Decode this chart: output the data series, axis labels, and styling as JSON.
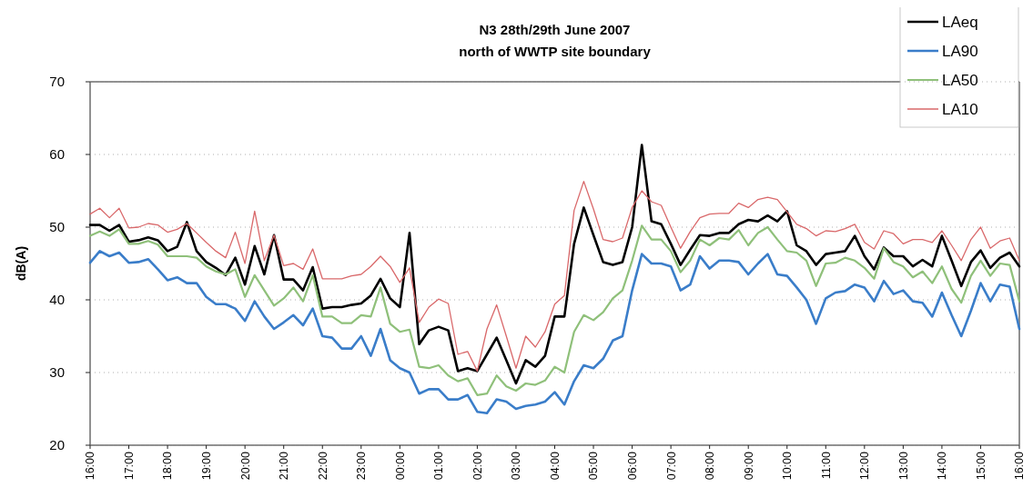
{
  "chart_data": {
    "type": "line",
    "title": "N3 28th/29th June 2007",
    "subtitle": "north of WWTP site boundary",
    "ylabel": "dB(A)",
    "x": [
      "2007-06-28T16:00",
      "2007-06-28T16:15",
      "2007-06-28T16:30",
      "2007-06-28T16:45",
      "2007-06-28T17:00",
      "2007-06-28T17:15",
      "2007-06-28T17:30",
      "2007-06-28T17:45",
      "2007-06-28T18:00",
      "2007-06-28T18:15",
      "2007-06-28T18:30",
      "2007-06-28T18:45",
      "2007-06-28T19:00",
      "2007-06-28T19:15",
      "2007-06-28T19:30",
      "2007-06-28T19:45",
      "2007-06-28T20:00",
      "2007-06-28T20:15",
      "2007-06-28T20:30",
      "2007-06-28T20:45",
      "2007-06-28T21:00",
      "2007-06-28T21:15",
      "2007-06-28T21:30",
      "2007-06-28T21:45",
      "2007-06-28T22:00",
      "2007-06-28T22:15",
      "2007-06-28T22:30",
      "2007-06-28T22:45",
      "2007-06-28T23:00",
      "2007-06-28T23:15",
      "2007-06-28T23:30",
      "2007-06-28T23:45",
      "2007-06-29T00:00",
      "2007-06-29T00:15",
      "2007-06-29T00:30",
      "2007-06-29T00:45",
      "2007-06-29T01:00",
      "2007-06-29T01:15",
      "2007-06-29T01:30",
      "2007-06-29T01:45",
      "2007-06-29T02:00",
      "2007-06-29T02:15",
      "2007-06-29T02:30",
      "2007-06-29T02:45",
      "2007-06-29T03:00",
      "2007-06-29T03:15",
      "2007-06-29T03:30",
      "2007-06-29T03:45",
      "2007-06-29T04:00",
      "2007-06-29T04:15",
      "2007-06-29T04:30",
      "2007-06-29T04:45",
      "2007-06-29T05:00",
      "2007-06-29T05:15",
      "2007-06-29T05:30",
      "2007-06-29T05:45",
      "2007-06-29T06:00",
      "2007-06-29T06:15",
      "2007-06-29T06:30",
      "2007-06-29T06:45",
      "2007-06-29T07:00",
      "2007-06-29T07:15",
      "2007-06-29T07:30",
      "2007-06-29T07:45",
      "2007-06-29T08:00",
      "2007-06-29T08:15",
      "2007-06-29T08:30",
      "2007-06-29T08:45",
      "2007-06-29T09:00",
      "2007-06-29T09:15",
      "2007-06-29T09:30",
      "2007-06-29T09:45",
      "2007-06-29T10:00",
      "2007-06-29T10:15",
      "2007-06-29T10:30",
      "2007-06-29T10:45",
      "2007-06-29T11:00",
      "2007-06-29T11:15",
      "2007-06-29T11:30",
      "2007-06-29T11:45",
      "2007-06-29T12:00",
      "2007-06-29T12:15",
      "2007-06-29T12:30",
      "2007-06-29T12:45",
      "2007-06-29T13:00",
      "2007-06-29T13:15",
      "2007-06-29T13:30",
      "2007-06-29T13:45",
      "2007-06-29T14:00",
      "2007-06-29T14:15",
      "2007-06-29T14:30",
      "2007-06-29T14:45",
      "2007-06-29T15:00",
      "2007-06-29T15:15",
      "2007-06-29T15:30",
      "2007-06-29T15:45",
      "2007-06-29T16:00"
    ],
    "xlim": [
      "2007-06-28T16:00",
      "2007-06-29T16:00"
    ],
    "xticks": [
      {
        "value": "2007-06-28T16:00",
        "label": "16:00"
      },
      {
        "value": "2007-06-28T17:00",
        "label": "17:00"
      },
      {
        "value": "2007-06-28T18:00",
        "label": "18:00"
      },
      {
        "value": "2007-06-28T19:00",
        "label": "19:00"
      },
      {
        "value": "2007-06-28T20:00",
        "label": "20:00"
      },
      {
        "value": "2007-06-28T21:00",
        "label": "21:00"
      },
      {
        "value": "2007-06-28T22:00",
        "label": "22:00"
      },
      {
        "value": "2007-06-28T23:00",
        "label": "23:00"
      },
      {
        "value": "2007-06-29T00:00",
        "label": "00:00"
      },
      {
        "value": "2007-06-29T01:00",
        "label": "01:00"
      },
      {
        "value": "2007-06-29T02:00",
        "label": "02:00"
      },
      {
        "value": "2007-06-29T03:00",
        "label": "03:00"
      },
      {
        "value": "2007-06-29T04:00",
        "label": "04:00"
      },
      {
        "value": "2007-06-29T05:00",
        "label": "05:00"
      },
      {
        "value": "2007-06-29T06:00",
        "label": "06:00"
      },
      {
        "value": "2007-06-29T07:00",
        "label": "07:00"
      },
      {
        "value": "2007-06-29T08:00",
        "label": "08:00"
      },
      {
        "value": "2007-06-29T09:00",
        "label": "09:00"
      },
      {
        "value": "2007-06-29T10:00",
        "label": "10:00"
      },
      {
        "value": "2007-06-29T11:00",
        "label": "11:00"
      },
      {
        "value": "2007-06-29T12:00",
        "label": "12:00"
      },
      {
        "value": "2007-06-29T13:00",
        "label": "13:00"
      },
      {
        "value": "2007-06-29T14:00",
        "label": "14:00"
      },
      {
        "value": "2007-06-29T15:00",
        "label": "15:00"
      },
      {
        "value": "2007-06-29T16:00",
        "label": "16:00"
      }
    ],
    "ylim": [
      20,
      70
    ],
    "yticks": [
      20,
      30,
      40,
      50,
      60,
      70
    ],
    "grid": "y",
    "legend": "top right",
    "line_style": "solid",
    "marker": "none",
    "series": [
      {
        "name": "LAeq",
        "color": "#000000",
        "values": [
          50.3,
          50.3,
          49.5,
          50.3,
          48.0,
          48.2,
          48.6,
          48.2,
          46.7,
          47.3,
          50.7,
          46.7,
          45.2,
          44.4,
          43.4,
          45.8,
          42.1,
          47.4,
          43.5,
          48.9,
          42.8,
          42.8,
          41.3,
          44.5,
          38.8,
          39.0,
          39.0,
          39.3,
          39.5,
          40.6,
          42.9,
          40.2,
          39.0,
          49.2,
          33.9,
          35.8,
          36.3,
          35.8,
          30.2,
          30.6,
          30.2,
          32.5,
          34.8,
          31.7,
          28.5,
          31.7,
          30.8,
          32.3,
          37.7,
          37.7,
          47.7,
          52.7,
          48.9,
          45.2,
          44.8,
          45.2,
          50.0,
          61.3,
          50.8,
          50.4,
          47.7,
          44.8,
          46.9,
          48.9,
          48.8,
          49.2,
          49.2,
          50.4,
          51.0,
          50.8,
          51.6,
          50.8,
          52.2,
          47.5,
          46.7,
          44.8,
          46.3,
          46.5,
          46.7,
          48.8,
          46.0,
          44.2,
          47.2,
          46.0,
          46.0,
          44.6,
          45.5,
          44.6,
          48.8,
          45.4,
          41.9,
          45.2,
          46.8,
          44.4,
          45.8,
          46.5,
          44.6
        ]
      },
      {
        "name": "LA90",
        "color": "#3a7dc9",
        "values": [
          45.1,
          46.7,
          46.0,
          46.5,
          45.1,
          45.2,
          45.6,
          44.2,
          42.7,
          43.1,
          42.3,
          42.3,
          40.4,
          39.4,
          39.4,
          38.8,
          37.1,
          39.8,
          37.7,
          36.0,
          36.9,
          37.9,
          36.5,
          38.8,
          35.0,
          34.8,
          33.3,
          33.3,
          35.0,
          32.3,
          36.0,
          31.7,
          30.6,
          30.0,
          27.1,
          27.7,
          27.7,
          26.3,
          26.3,
          26.9,
          24.6,
          24.4,
          26.3,
          26.0,
          25.0,
          25.4,
          25.6,
          26.0,
          27.3,
          25.6,
          28.8,
          31.0,
          30.6,
          31.9,
          34.4,
          35.0,
          41.3,
          46.3,
          45.0,
          45.0,
          44.6,
          41.3,
          42.1,
          46.0,
          44.3,
          45.4,
          45.4,
          45.2,
          43.5,
          45.0,
          46.3,
          43.5,
          43.3,
          41.7,
          40.0,
          36.7,
          40.2,
          41.0,
          41.2,
          42.1,
          41.7,
          39.8,
          42.6,
          40.8,
          41.3,
          39.8,
          39.6,
          37.7,
          41.0,
          37.9,
          35.0,
          38.5,
          42.3,
          39.8,
          42.1,
          41.8,
          36.0
        ]
      },
      {
        "name": "LA50",
        "color": "#8fc07a",
        "values": [
          48.8,
          49.4,
          48.8,
          49.7,
          47.7,
          47.7,
          48.1,
          47.6,
          46.0,
          46.0,
          46.0,
          45.8,
          44.6,
          43.9,
          43.5,
          44.2,
          40.4,
          43.4,
          41.3,
          39.2,
          40.2,
          41.7,
          39.8,
          43.4,
          37.7,
          37.7,
          36.8,
          36.8,
          37.9,
          37.7,
          41.7,
          36.7,
          35.6,
          35.9,
          30.8,
          30.6,
          31.0,
          29.6,
          28.8,
          29.2,
          26.9,
          27.1,
          29.6,
          28.1,
          27.5,
          28.5,
          28.3,
          28.9,
          30.8,
          30.0,
          35.6,
          37.9,
          37.2,
          38.3,
          40.2,
          41.3,
          45.4,
          50.2,
          48.3,
          48.3,
          46.7,
          43.8,
          45.4,
          48.3,
          47.5,
          48.5,
          48.3,
          49.6,
          47.5,
          49.2,
          50.0,
          48.3,
          46.7,
          46.5,
          45.4,
          41.9,
          45.0,
          45.1,
          45.8,
          45.4,
          44.4,
          42.9,
          47.1,
          45.2,
          44.6,
          43.1,
          43.9,
          42.3,
          44.6,
          41.5,
          39.6,
          43.3,
          45.4,
          43.3,
          45.0,
          44.8,
          39.8
        ]
      },
      {
        "name": "LA10",
        "color": "#d9686a",
        "values": [
          51.8,
          52.6,
          51.3,
          52.6,
          49.9,
          50.0,
          50.5,
          50.3,
          49.3,
          49.7,
          50.5,
          49.2,
          47.9,
          46.7,
          45.8,
          49.3,
          45.0,
          52.2,
          45.4,
          48.9,
          44.7,
          45.0,
          44.2,
          47.0,
          42.9,
          42.9,
          42.9,
          43.3,
          43.5,
          44.6,
          46.0,
          44.6,
          42.4,
          44.4,
          36.9,
          39.0,
          40.1,
          39.5,
          32.5,
          32.9,
          30.2,
          36.0,
          39.3,
          35.0,
          30.6,
          35.0,
          33.5,
          35.6,
          39.4,
          40.6,
          52.3,
          56.3,
          52.5,
          48.3,
          48.0,
          48.5,
          52.7,
          55.0,
          53.5,
          53.0,
          50.0,
          47.1,
          49.4,
          51.3,
          51.8,
          51.9,
          51.9,
          53.3,
          52.7,
          53.8,
          54.1,
          53.8,
          52.1,
          50.4,
          49.8,
          48.8,
          49.5,
          49.4,
          49.8,
          50.4,
          47.9,
          47.0,
          49.5,
          49.1,
          47.7,
          48.3,
          48.3,
          47.9,
          49.5,
          47.5,
          45.4,
          48.3,
          50.0,
          47.1,
          48.1,
          48.5,
          45.4
        ]
      }
    ]
  }
}
